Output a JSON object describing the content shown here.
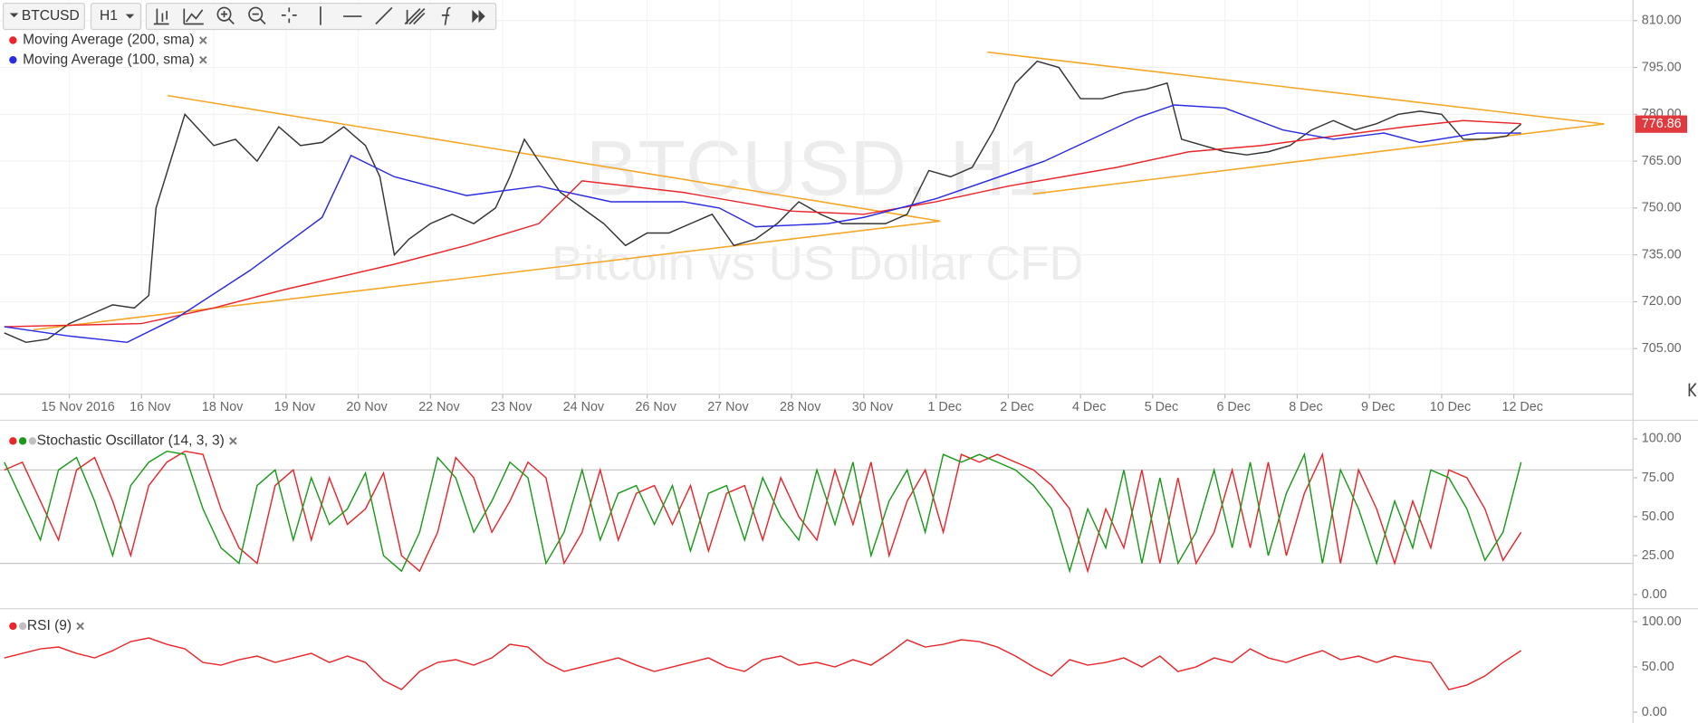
{
  "toolbar": {
    "symbol": "BTCUSD",
    "interval": "H1"
  },
  "chart_data": [
    {
      "type": "line",
      "watermark_title": "BTCUSD, H1",
      "watermark_subtitle": "Bitcoin vs US Dollar CFD",
      "xlim": [
        -0.96,
        21.65
      ],
      "xticks": [
        {
          "value": 0,
          "label": "15 Nov 2016"
        },
        {
          "value": 1,
          "label": "16 Nov"
        },
        {
          "value": 2,
          "label": "18 Nov"
        },
        {
          "value": 3,
          "label": "19 Nov"
        },
        {
          "value": 4,
          "label": "20 Nov"
        },
        {
          "value": 5,
          "label": "22 Nov"
        },
        {
          "value": 6,
          "label": "23 Nov"
        },
        {
          "value": 7,
          "label": "24 Nov"
        },
        {
          "value": 8,
          "label": "26 Nov"
        },
        {
          "value": 9,
          "label": "27 Nov"
        },
        {
          "value": 10,
          "label": "28 Nov"
        },
        {
          "value": 11,
          "label": "30 Nov"
        },
        {
          "value": 12,
          "label": "1 Dec"
        },
        {
          "value": 13,
          "label": "2 Dec"
        },
        {
          "value": 14,
          "label": "4 Dec"
        },
        {
          "value": 15,
          "label": "5 Dec"
        },
        {
          "value": 16,
          "label": "6 Dec"
        },
        {
          "value": 17,
          "label": "8 Dec"
        },
        {
          "value": 18,
          "label": "9 Dec"
        },
        {
          "value": 19,
          "label": "10 Dec"
        },
        {
          "value": 20,
          "label": "12 Dec"
        }
      ],
      "ylim": [
        690.4,
        816.6
      ],
      "yticks": [
        {
          "value": 705,
          "label": "705.00"
        },
        {
          "value": 720,
          "label": "720.00"
        },
        {
          "value": 735,
          "label": "735.00"
        },
        {
          "value": 750,
          "label": "750.00"
        },
        {
          "value": 765,
          "label": "765.00"
        },
        {
          "value": 780,
          "label": "780.00"
        },
        {
          "value": 795,
          "label": "795.00"
        },
        {
          "value": 810,
          "label": "810.00"
        }
      ],
      "grid": true,
      "last_price": 776.86,
      "last_price_color": "#e0393e",
      "series": [
        {
          "color": "#333333",
          "x": [
            -0.9,
            -0.6,
            -0.3,
            0,
            0.3,
            0.6,
            0.9,
            1.1,
            1.2,
            1.4,
            1.6,
            1.8,
            2.0,
            2.3,
            2.6,
            2.9,
            3.2,
            3.5,
            3.8,
            4.1,
            4.3,
            4.5,
            4.7,
            5.0,
            5.3,
            5.6,
            5.9,
            6.1,
            6.3,
            6.5,
            6.8,
            7.1,
            7.4,
            7.7,
            8.0,
            8.3,
            8.6,
            8.9,
            9.2,
            9.5,
            9.8,
            10.1,
            10.4,
            10.7,
            11.0,
            11.3,
            11.6,
            11.9,
            12.2,
            12.5,
            12.8,
            13.1,
            13.4,
            13.7,
            14.0,
            14.3,
            14.6,
            14.9,
            15.2,
            15.4,
            15.7,
            16.0,
            16.3,
            16.6,
            16.9,
            17.2,
            17.5,
            17.8,
            18.1,
            18.4,
            18.7,
            19.0,
            19.3,
            19.6,
            19.9,
            20.1
          ],
          "values": [
            710,
            707,
            708,
            713,
            716,
            719,
            718,
            722,
            750,
            765,
            780,
            775,
            770,
            772,
            765,
            776,
            770,
            771,
            776,
            770,
            760,
            735,
            740,
            745,
            748,
            745,
            750,
            760,
            772,
            765,
            755,
            750,
            745,
            738,
            742,
            742,
            745,
            748,
            738,
            740,
            745,
            752,
            748,
            745,
            745,
            745,
            748,
            762,
            760,
            763,
            775,
            790,
            797,
            795,
            785,
            785,
            787,
            788,
            790,
            772,
            770,
            768,
            767,
            768,
            770,
            775,
            778,
            775,
            777,
            780,
            781,
            780,
            772,
            772,
            773,
            776.86
          ]
        },
        {
          "name": "Moving Average (200, sma)",
          "color": "#e8262b",
          "x": [
            -0.9,
            1,
            2,
            3,
            4.5,
            5.5,
            6.5,
            7.1,
            8.5,
            10,
            11,
            12,
            13,
            14.5,
            15.5,
            16.5,
            17.5,
            18.5,
            19.3,
            20.1
          ],
          "values": [
            712,
            713,
            718,
            724,
            732,
            738,
            745,
            758.7,
            755,
            749,
            748,
            752,
            757,
            763,
            768,
            770,
            773,
            776,
            778,
            777
          ]
        },
        {
          "name": "Moving Average (100, sma)",
          "color": "#2a2ae0",
          "x": [
            -0.9,
            0,
            0.8,
            1.5,
            2.5,
            3.5,
            3.9,
            4.5,
            5.5,
            6.5,
            7.5,
            8.5,
            9.0,
            9.5,
            10.5,
            11,
            12,
            13.5,
            14.8,
            15.3,
            16.0,
            16.8,
            17.5,
            18.2,
            18.7,
            19.5,
            20.1
          ],
          "values": [
            712,
            709,
            707,
            715,
            730,
            747,
            766.8,
            760,
            754,
            757,
            752,
            752,
            750,
            744,
            745,
            747,
            753,
            765,
            779,
            783,
            782,
            775,
            772,
            774,
            771,
            774,
            774
          ]
        }
      ],
      "trendlines": [
        {
          "color": "#f5a623",
          "x": [
            1.36,
            12.06
          ],
          "values": [
            786,
            745.8
          ]
        },
        {
          "color": "#f5a623",
          "x": [
            -0.5,
            12.06
          ],
          "values": [
            711,
            745.8
          ]
        },
        {
          "color": "#f5a623",
          "x": [
            12.71,
            21.25
          ],
          "values": [
            799.9,
            776.9
          ]
        },
        {
          "color": "#f5a623",
          "x": [
            13.34,
            21.25
          ],
          "values": [
            754.5,
            776.9
          ]
        }
      ]
    },
    {
      "type": "line",
      "title": "Stochastic Oscillator (14, 3, 3)",
      "xlim": [
        -0.96,
        21.65
      ],
      "ylim": [
        -7,
        107.7
      ],
      "yticks": [
        {
          "value": 0,
          "label": "0.00"
        },
        {
          "value": 25,
          "label": "25.00"
        },
        {
          "value": 50,
          "label": "50.00"
        },
        {
          "value": 75,
          "label": "75.00"
        },
        {
          "value": 100,
          "label": "100.00"
        }
      ],
      "levels": [
        80,
        20
      ],
      "series": [
        {
          "color": "#e8262b",
          "x": [
            -0.9,
            -0.65,
            -0.4,
            -0.15,
            0.1,
            0.35,
            0.6,
            0.85,
            1.1,
            1.35,
            1.6,
            1.85,
            2.1,
            2.35,
            2.6,
            2.85,
            3.1,
            3.35,
            3.6,
            3.85,
            4.1,
            4.35,
            4.6,
            4.85,
            5.1,
            5.35,
            5.6,
            5.85,
            6.1,
            6.35,
            6.6,
            6.85,
            7.1,
            7.35,
            7.6,
            7.85,
            8.1,
            8.35,
            8.6,
            8.85,
            9.1,
            9.35,
            9.6,
            9.85,
            10.1,
            10.35,
            10.6,
            10.85,
            11.1,
            11.35,
            11.6,
            11.85,
            12.1,
            12.35,
            12.6,
            12.85,
            13.1,
            13.35,
            13.6,
            13.85,
            14.1,
            14.35,
            14.6,
            14.85,
            15.1,
            15.35,
            15.6,
            15.85,
            16.1,
            16.35,
            16.6,
            16.85,
            17.1,
            17.35,
            17.6,
            17.85,
            18.1,
            18.35,
            18.6,
            18.85,
            19.1,
            19.35,
            19.6,
            19.85,
            20.1
          ],
          "values": [
            80,
            85,
            60,
            35,
            80,
            88,
            60,
            25,
            70,
            85,
            92,
            90,
            55,
            30,
            20,
            70,
            80,
            35,
            75,
            45,
            55,
            78,
            25,
            15,
            40,
            88,
            75,
            40,
            60,
            85,
            75,
            20,
            40,
            80,
            35,
            65,
            70,
            45,
            70,
            28,
            65,
            70,
            35,
            75,
            50,
            35,
            80,
            45,
            85,
            25,
            60,
            80,
            40,
            90,
            85,
            90,
            85,
            80,
            70,
            55,
            15,
            55,
            30,
            80,
            20,
            75,
            20,
            40,
            80,
            30,
            85,
            25,
            65,
            90,
            20,
            80,
            55,
            20,
            60,
            30,
            80,
            75,
            55,
            22,
            40
          ]
        },
        {
          "color": "#1a9a1a",
          "x": [
            -0.9,
            -0.65,
            -0.4,
            -0.15,
            0.1,
            0.35,
            0.6,
            0.85,
            1.1,
            1.35,
            1.6,
            1.85,
            2.1,
            2.35,
            2.6,
            2.85,
            3.1,
            3.35,
            3.6,
            3.85,
            4.1,
            4.35,
            4.6,
            4.85,
            5.1,
            5.35,
            5.6,
            5.85,
            6.1,
            6.35,
            6.6,
            6.85,
            7.1,
            7.35,
            7.6,
            7.85,
            8.1,
            8.35,
            8.6,
            8.85,
            9.1,
            9.35,
            9.6,
            9.85,
            10.1,
            10.35,
            10.6,
            10.85,
            11.1,
            11.35,
            11.6,
            11.85,
            12.1,
            12.35,
            12.6,
            12.85,
            13.1,
            13.35,
            13.6,
            13.85,
            14.1,
            14.35,
            14.6,
            14.85,
            15.1,
            15.35,
            15.6,
            15.85,
            16.1,
            16.35,
            16.6,
            16.85,
            17.1,
            17.35,
            17.6,
            17.85,
            18.1,
            18.35,
            18.6,
            18.85,
            19.1,
            19.35,
            19.6,
            19.85,
            20.1
          ],
          "values": [
            85,
            60,
            35,
            80,
            88,
            60,
            25,
            70,
            85,
            92,
            90,
            55,
            30,
            20,
            70,
            80,
            35,
            75,
            45,
            55,
            78,
            25,
            15,
            40,
            88,
            75,
            40,
            60,
            85,
            75,
            20,
            40,
            80,
            35,
            65,
            70,
            45,
            70,
            28,
            65,
            70,
            35,
            75,
            50,
            35,
            80,
            45,
            85,
            25,
            60,
            80,
            40,
            90,
            85,
            90,
            85,
            80,
            70,
            55,
            15,
            55,
            30,
            80,
            20,
            75,
            20,
            40,
            80,
            30,
            85,
            25,
            65,
            90,
            20,
            80,
            55,
            20,
            60,
            30,
            80,
            75,
            55,
            22,
            40,
            85
          ]
        }
      ]
    },
    {
      "type": "line",
      "title": "RSI (9)",
      "xlim": [
        -0.96,
        21.65
      ],
      "ylim": [
        -12,
        110.8
      ],
      "yticks": [
        {
          "value": 0,
          "label": "0.00"
        },
        {
          "value": 50,
          "label": "50.00"
        },
        {
          "value": 100,
          "label": "100.00"
        }
      ],
      "series": [
        {
          "color": "#e8262b",
          "x": [
            -0.9,
            -0.65,
            -0.4,
            -0.15,
            0.1,
            0.35,
            0.6,
            0.85,
            1.1,
            1.35,
            1.6,
            1.85,
            2.1,
            2.35,
            2.6,
            2.85,
            3.1,
            3.35,
            3.6,
            3.85,
            4.1,
            4.35,
            4.6,
            4.85,
            5.1,
            5.35,
            5.6,
            5.85,
            6.1,
            6.35,
            6.6,
            6.85,
            7.1,
            7.35,
            7.6,
            7.85,
            8.1,
            8.35,
            8.6,
            8.85,
            9.1,
            9.35,
            9.6,
            9.85,
            10.1,
            10.35,
            10.6,
            10.85,
            11.1,
            11.35,
            11.6,
            11.85,
            12.1,
            12.35,
            12.6,
            12.85,
            13.1,
            13.35,
            13.6,
            13.85,
            14.1,
            14.35,
            14.6,
            14.85,
            15.1,
            15.35,
            15.6,
            15.85,
            16.1,
            16.35,
            16.6,
            16.85,
            17.1,
            17.35,
            17.6,
            17.85,
            18.1,
            18.35,
            18.6,
            18.85,
            19.1,
            19.35,
            19.6,
            19.85,
            20.1
          ],
          "values": [
            60,
            65,
            70,
            72,
            65,
            60,
            68,
            78,
            82,
            75,
            70,
            55,
            52,
            58,
            62,
            55,
            60,
            65,
            55,
            62,
            55,
            35,
            25,
            45,
            55,
            58,
            52,
            60,
            75,
            72,
            55,
            45,
            50,
            55,
            60,
            52,
            45,
            50,
            55,
            60,
            50,
            45,
            58,
            62,
            52,
            55,
            50,
            58,
            52,
            65,
            80,
            72,
            75,
            80,
            78,
            72,
            62,
            50,
            40,
            58,
            52,
            55,
            60,
            50,
            62,
            45,
            50,
            60,
            55,
            70,
            60,
            55,
            62,
            68,
            58,
            62,
            55,
            62,
            58,
            55,
            25,
            30,
            40,
            55,
            68
          ]
        }
      ]
    }
  ]
}
